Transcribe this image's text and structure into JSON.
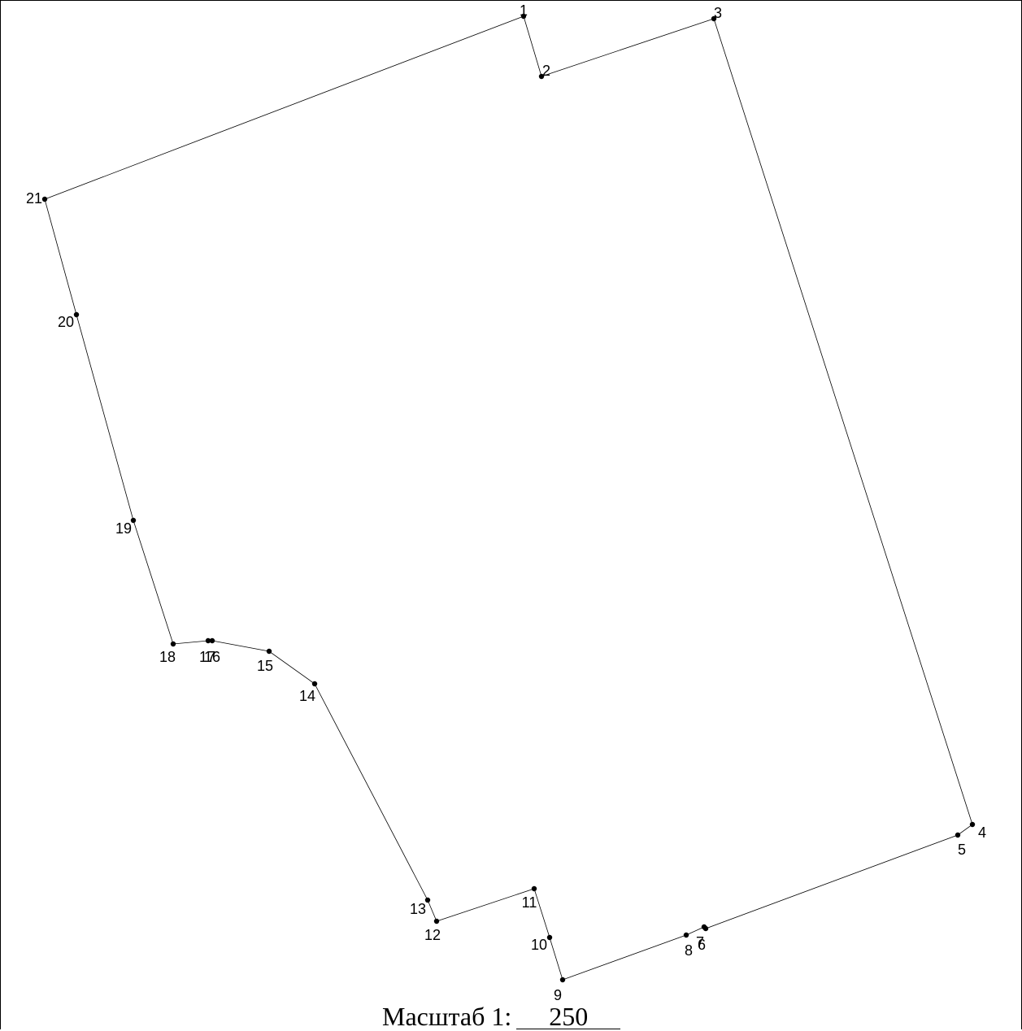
{
  "scale": {
    "label": "Масштаб 1:",
    "value": "250"
  },
  "boundary": {
    "points": [
      {
        "label": "1"
      },
      {
        "label": "2"
      },
      {
        "label": "3"
      },
      {
        "label": "4"
      },
      {
        "label": "5"
      },
      {
        "label": "6"
      },
      {
        "label": "7"
      },
      {
        "label": "8"
      },
      {
        "label": "9"
      },
      {
        "label": "10"
      },
      {
        "label": "11"
      },
      {
        "label": "12"
      },
      {
        "label": "13"
      },
      {
        "label": "14"
      },
      {
        "label": "15"
      },
      {
        "label": "16"
      },
      {
        "label": "17"
      },
      {
        "label": "18"
      },
      {
        "label": "19"
      },
      {
        "label": "20"
      },
      {
        "label": "21"
      }
    ],
    "closed": true
  }
}
